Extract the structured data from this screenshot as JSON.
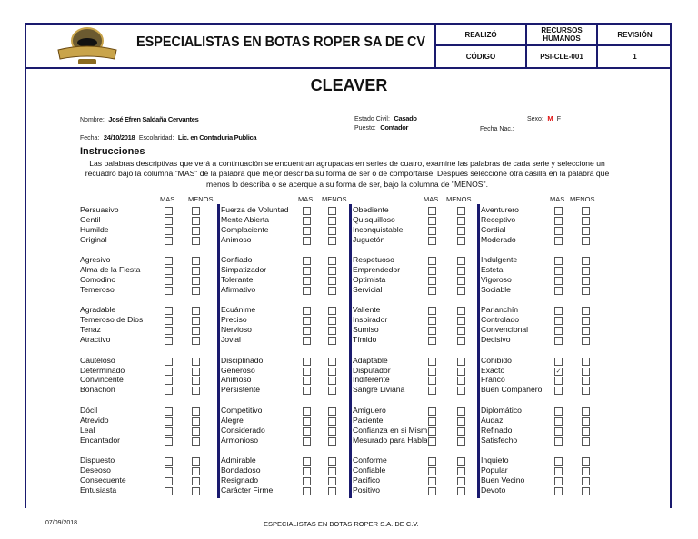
{
  "header": {
    "company": "ESPECIALISTAS EN BOTAS ROPER SA DE CV",
    "logo_text": "ANGUS",
    "realizo_label": "REALIZÓ",
    "realizo_value": "RECURSOS HUMANOS",
    "revision_label": "REVISIÓN",
    "codigo_label": "CÓDIGO",
    "codigo_value": "PSI-CLE-001",
    "revision_value": "1"
  },
  "title": "CLEAVER",
  "info": {
    "nombre_label": "Nombre:",
    "nombre": "José Efren Saldaña Cervantes",
    "estado_label": "Estado Civil:",
    "estado": "Casado",
    "sexo_label": "Sexo:",
    "sexo_m": "M",
    "sexo_f": "F",
    "puesto_label": "Puesto:",
    "puesto": "Contador",
    "fechanac_label": "Fecha Nac.:",
    "fechanac": "_________",
    "fecha_label": "Fecha:",
    "fecha": "24/10/2018",
    "escolaridad_label": "Escolaridad:",
    "escolaridad": "Lic. en Contaduria Publica"
  },
  "instructions": {
    "heading": "Instrucciones",
    "text": "Las palabras descriptivas que verá a continuación se encuentran agrupadas en series de cuatro, examine las palabras de cada serie y seleccione un recuadro bajo la columna \"MAS\" de la palabra que mejor describa su forma de ser o de comportarse. Después seleccione otra casilla  en la palabra que menos lo describa o se acerque a su forma de ser, bajo la columna de \"MENOS\"."
  },
  "col_headers": {
    "mas": "MAS",
    "menos": "MENOS"
  },
  "columns": [
    {
      "groups": [
        [
          "Persuasivo",
          "Gentil",
          "Humilde",
          "Original"
        ],
        [
          "Agresivo",
          "Alma de la Fiesta",
          "Comodino",
          "Temeroso"
        ],
        [
          "Agradable",
          "Temeroso de Dios",
          "Tenaz",
          "Atractivo"
        ],
        [
          "Cauteloso",
          "Determinado",
          "Convincente",
          "Bonachón"
        ],
        [
          "Dócil",
          "Atrevido",
          "Leal",
          "Encantador"
        ],
        [
          "Dispuesto",
          "Deseoso",
          "Consecuente",
          "Entusiasta"
        ]
      ]
    },
    {
      "groups": [
        [
          "Fuerza de Voluntad",
          "Mente Abierta",
          "Complaciente",
          "Animoso"
        ],
        [
          "Confiado",
          "Simpatizador",
          "Tolerante",
          "Afirmativo"
        ],
        [
          "Ecuánime",
          "Preciso",
          "Nervioso",
          "Jovial"
        ],
        [
          "Disciplinado",
          "Generoso",
          "Animoso",
          "Persistente"
        ],
        [
          "Competitivo",
          "Alegre",
          "Considerado",
          "Armonioso"
        ],
        [
          "Admirable",
          "Bondadoso",
          "Resignado",
          "Carácter Firme"
        ]
      ]
    },
    {
      "groups": [
        [
          "Obediente",
          "Quisquilloso",
          "Inconquistable",
          "Juguetón"
        ],
        [
          "Respetuoso",
          "Emprendedor",
          "Optimista",
          "Servicial"
        ],
        [
          "Valiente",
          "Inspirador",
          "Sumiso",
          "Tímido"
        ],
        [
          "Adaptable",
          "Disputador",
          "Indiferente",
          "Sangre Liviana"
        ],
        [
          "Amiguero",
          "Paciente",
          "Confianza en si Mismo",
          "Mesurado para Hablar"
        ],
        [
          "Conforme",
          "Confiable",
          "Pacifico",
          "Positivo"
        ]
      ]
    },
    {
      "groups": [
        [
          "Aventurero",
          "Receptivo",
          "Cordial",
          "Moderado"
        ],
        [
          "Indulgente",
          "Esteta",
          "Vigoroso",
          "Sociable"
        ],
        [
          "Parlanchín",
          "Controlado",
          "Convencional",
          "Decisivo"
        ],
        [
          "Cohibido",
          "Exacto",
          "Franco",
          "Buen Compañero"
        ],
        [
          "Diplomático",
          "Audaz",
          "Refinado",
          "Satisfecho"
        ],
        [
          "Inquieto",
          "Popular",
          "Buen Vecino",
          "Devoto"
        ]
      ]
    }
  ],
  "checked": [
    {
      "column": 4,
      "group": 4,
      "word": "Exacto",
      "choice": "MAS"
    }
  ],
  "footer": {
    "date": "07/09/2018",
    "company": "ESPECIALISTAS EN BOTAS ROPER S.A. DE C.V."
  },
  "colors": {
    "border": "#1a1a6e",
    "sexo_mark": "#e01010"
  }
}
